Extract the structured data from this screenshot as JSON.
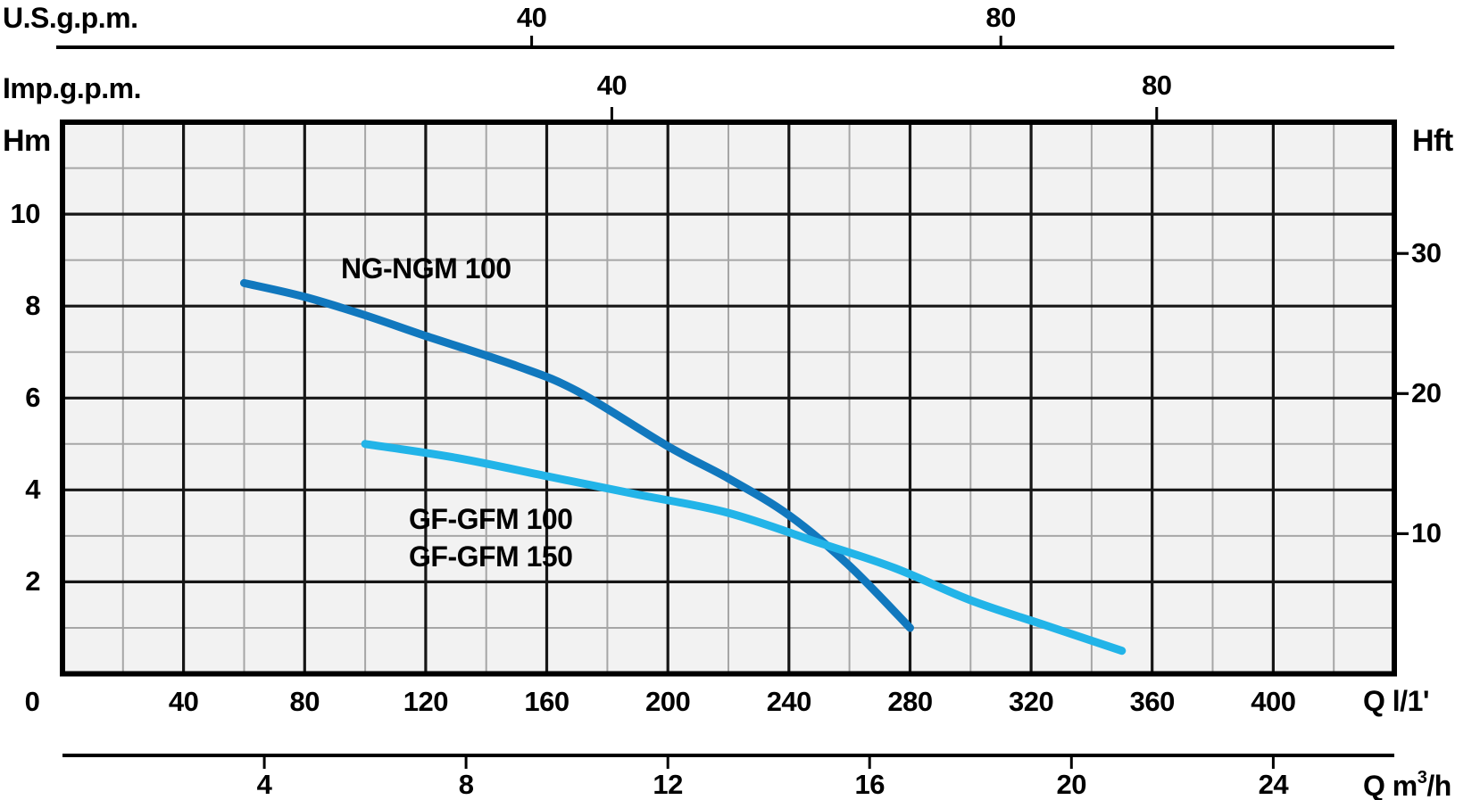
{
  "top_axes": {
    "us_label": "U.S.g.p.m.",
    "imp_label": "Imp.g.p.m."
  },
  "axis_titles": {
    "left": "Hm",
    "right": "Hft",
    "bottom_flow": "Q l/1'",
    "bottom_m3h_prefix": "Q m",
    "bottom_m3h_sup": "3",
    "bottom_m3h_suffix": "/h"
  },
  "curve_labels": {
    "ng": "NG-NGM 100",
    "gf1": "GF-GFM 100",
    "gf2": "GF-GFM 150"
  },
  "chart_data": {
    "type": "line",
    "x_axis_lmin": {
      "label": "Q l/1'",
      "min": 0,
      "max": 440,
      "tick_labels": [
        0,
        40,
        80,
        120,
        160,
        200,
        240,
        280,
        320,
        360,
        400
      ],
      "major_step": 40,
      "minor_step": 20
    },
    "x_axis_m3h": {
      "label": "Q m³/h",
      "ticks": [
        4,
        8,
        12,
        16,
        20,
        24
      ],
      "lmin_per_unit": 16.6667
    },
    "x_axis_usgpm": {
      "label": "U.S.g.p.m.",
      "ticks": [
        40,
        80
      ],
      "tick_q_lmin": [
        155,
        310
      ]
    },
    "x_axis_impgpm": {
      "label": "Imp.g.p.m.",
      "ticks": [
        40,
        80
      ],
      "tick_q_lmin": [
        181.5,
        361.5
      ]
    },
    "y_axis_m": {
      "label": "Hm",
      "min": 0,
      "max": 12,
      "tick_labels": [
        2,
        4,
        6,
        8,
        10
      ],
      "major_step": 2,
      "minor_step": 1
    },
    "y_axis_ft": {
      "label": "Hft",
      "ticks": [
        10,
        20,
        30
      ],
      "m_per_unit": 0.3048
    },
    "grid": true,
    "legend_position": "inline-labels",
    "series": [
      {
        "name": "NG-NGM 100",
        "color": "#1178be",
        "points": [
          [
            60,
            8.5
          ],
          [
            80,
            8.2
          ],
          [
            100,
            7.8
          ],
          [
            120,
            7.35
          ],
          [
            150,
            6.7
          ],
          [
            170,
            6.15
          ],
          [
            200,
            4.95
          ],
          [
            220,
            4.25
          ],
          [
            240,
            3.45
          ],
          [
            260,
            2.35
          ],
          [
            280,
            1.0
          ]
        ]
      },
      {
        "name": "GF-GFM 100 / GF-GFM 150",
        "color": "#22b4e8",
        "points": [
          [
            100,
            5.0
          ],
          [
            130,
            4.7
          ],
          [
            160,
            4.3
          ],
          [
            190,
            3.9
          ],
          [
            220,
            3.5
          ],
          [
            250,
            2.85
          ],
          [
            275,
            2.3
          ],
          [
            300,
            1.6
          ],
          [
            325,
            1.05
          ],
          [
            350,
            0.5
          ]
        ]
      }
    ],
    "colors": {
      "plot_bg": "#f2f2f2",
      "grid_minor": "#a6a6a6",
      "grid_major": "#161616",
      "frame": "#000000",
      "axis_line": "#000000",
      "text": "#000000"
    }
  }
}
